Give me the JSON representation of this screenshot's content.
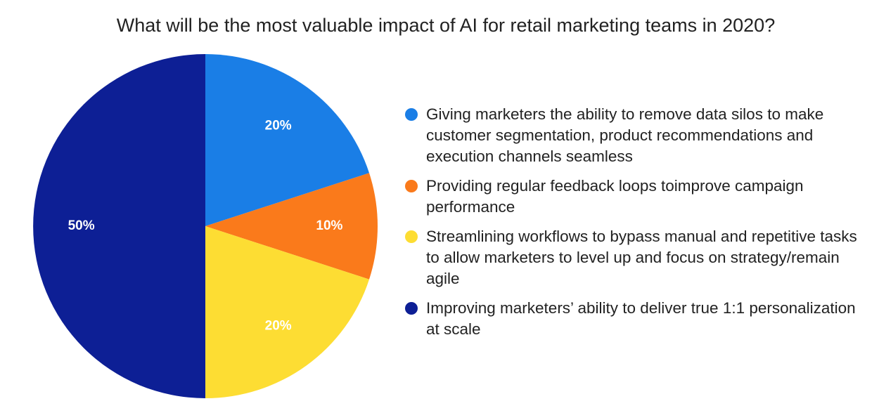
{
  "chart_data": {
    "type": "pie",
    "title": "What will be the most valuable impact of AI for retail marketing teams in 2020?",
    "categories": [
      "Giving marketers the ability to remove data silos to make customer segmentation, product recommendations and execution channels seamless",
      "Providing regular feedback loops toimprove campaign performance",
      "Streamlining workflows to bypass manual and repetitive tasks to allow marketers to level up and focus on strategy/remain agile",
      "Improving marketers’ ability to deliver true 1:1 personalization at scale"
    ],
    "values": [
      20,
      10,
      20,
      50
    ],
    "value_labels": [
      "20%",
      "10%",
      "20%",
      "50%"
    ],
    "colors": [
      "#1a7ee6",
      "#fa7a1b",
      "#fddd33",
      "#0d1f95"
    ],
    "legend": "right"
  }
}
